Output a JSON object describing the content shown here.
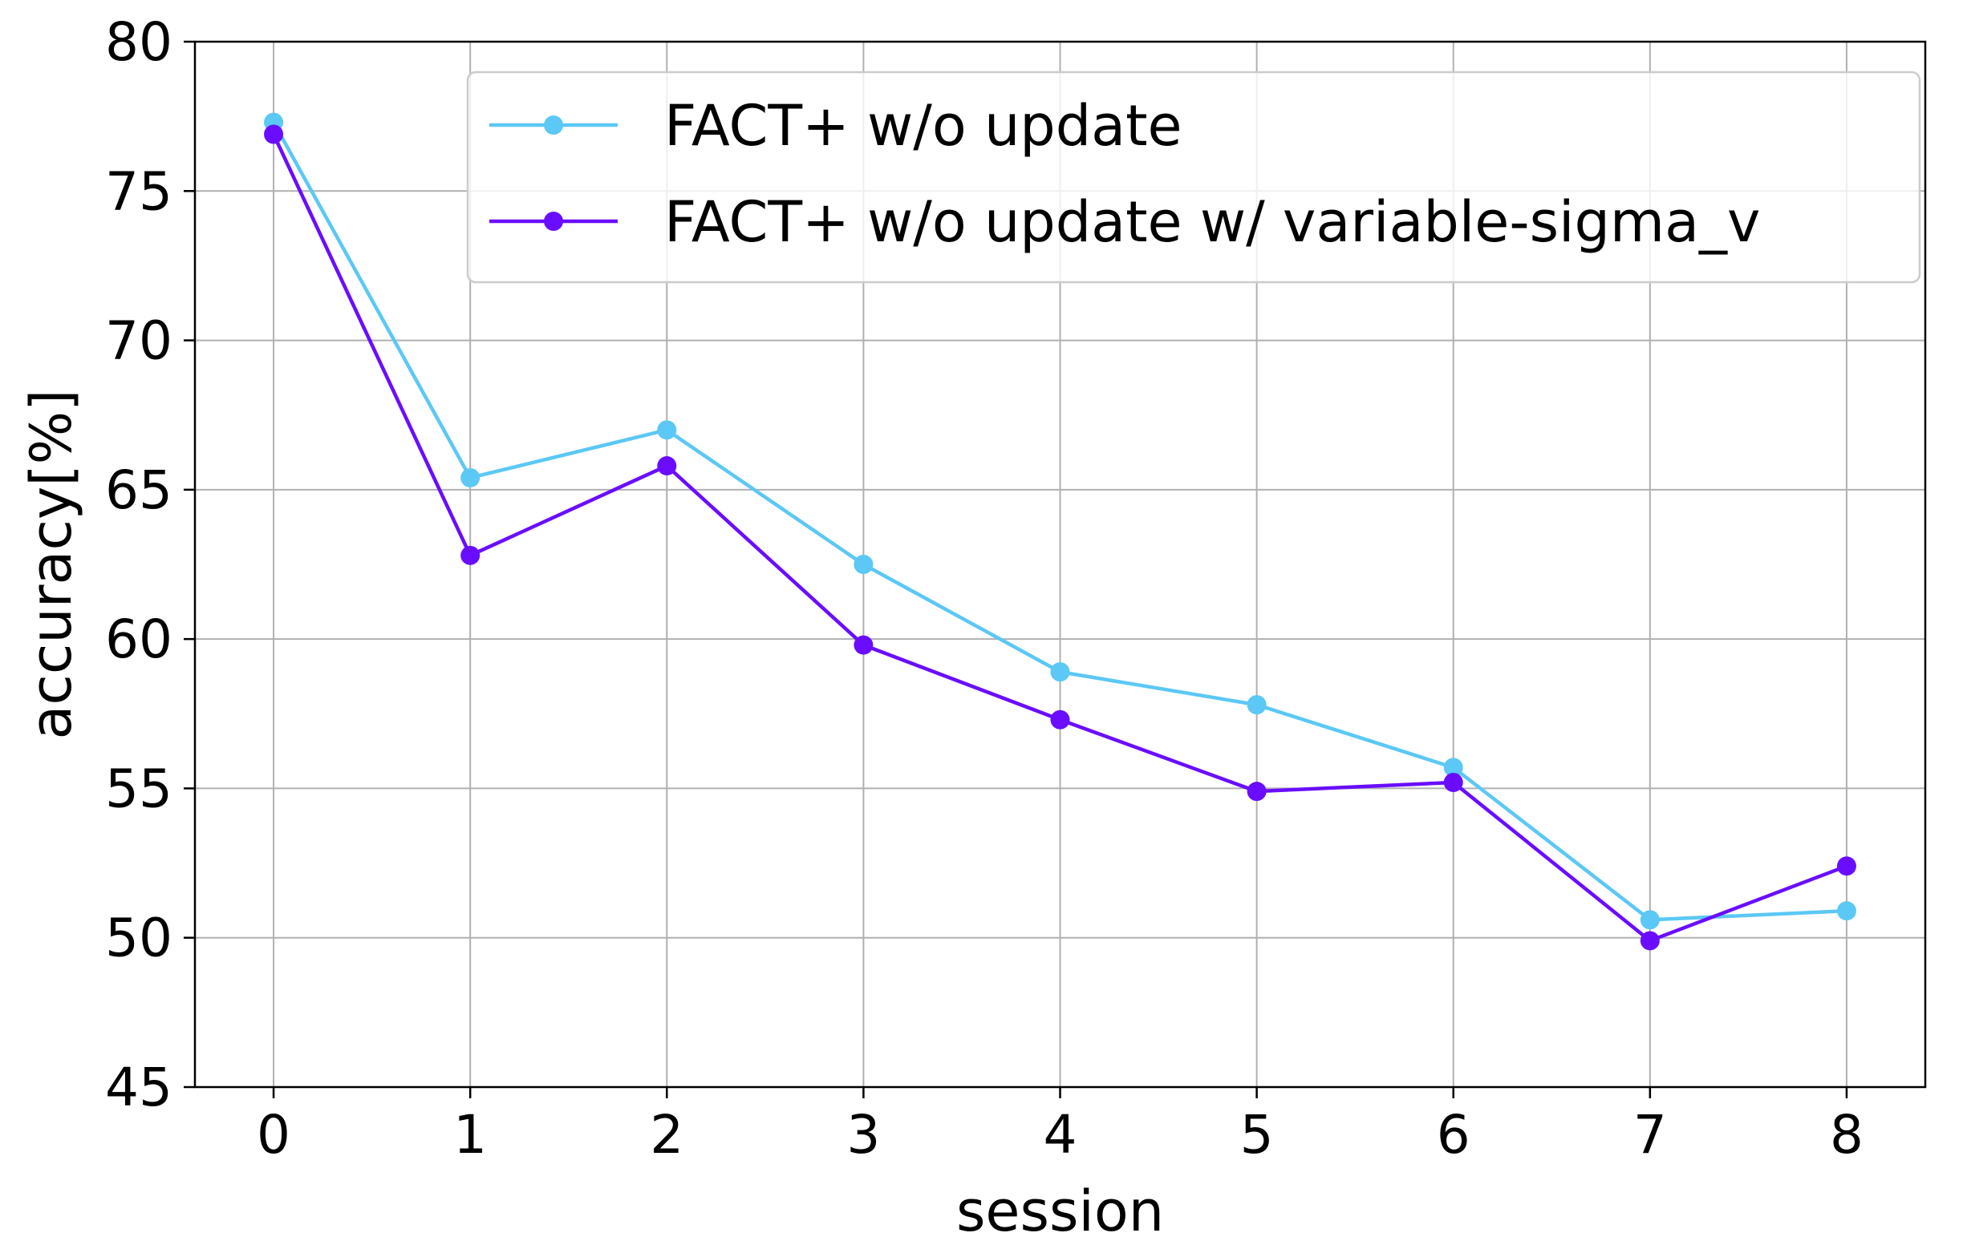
{
  "chart_data": {
    "type": "line",
    "xlabel": "session",
    "ylabel": "accuracy[%]",
    "x": [
      0,
      1,
      2,
      3,
      4,
      5,
      6,
      7,
      8
    ],
    "xlim": [
      -0.4,
      8.4
    ],
    "ylim": [
      45,
      80
    ],
    "xticks": [
      0,
      1,
      2,
      3,
      4,
      5,
      6,
      7,
      8
    ],
    "yticks": [
      45,
      50,
      55,
      60,
      65,
      70,
      75,
      80
    ],
    "grid": true,
    "legend_position": "top-right",
    "series": [
      {
        "name": "FACT+ w/o update",
        "color": "#5bc8f5",
        "marker": "circle",
        "values": [
          77.3,
          65.4,
          67.0,
          62.5,
          58.9,
          57.8,
          55.7,
          50.6,
          50.9
        ]
      },
      {
        "name": "FACT+ w/o update w/ variable-sigma_v",
        "color": "#6a0dff",
        "marker": "circle",
        "values": [
          76.9,
          62.8,
          65.8,
          59.8,
          57.3,
          54.9,
          55.2,
          49.9,
          52.4
        ]
      }
    ]
  }
}
